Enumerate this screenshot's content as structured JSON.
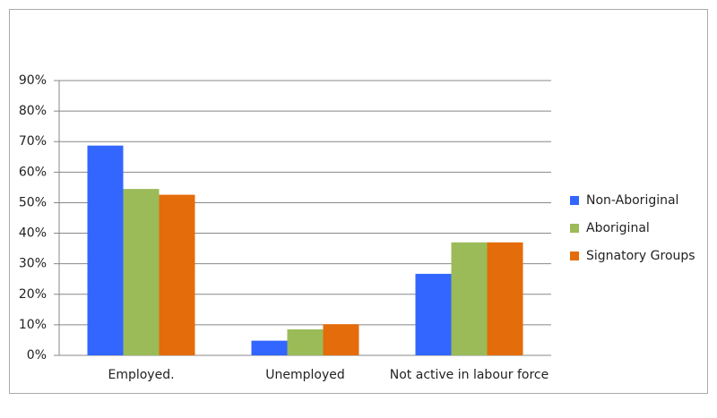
{
  "chart_data": {
    "type": "bar",
    "categories": [
      "Employed.",
      "Unemployed",
      "Not active in labour force"
    ],
    "series": [
      {
        "name": "Non-Aboriginal",
        "color": "#3366ff",
        "values": [
          68.7,
          4.8,
          26.7
        ]
      },
      {
        "name": "Aboriginal",
        "color": "#9bbb59",
        "values": [
          54.5,
          8.5,
          37
        ]
      },
      {
        "name": "Signatory Groups",
        "color": "#e46c0a",
        "values": [
          52.6,
          10.2,
          37
        ]
      }
    ],
    "ylim": [
      0,
      90
    ],
    "yticks": [
      {
        "value": 0,
        "label": "0%"
      },
      {
        "value": 10,
        "label": "10%"
      },
      {
        "value": 20,
        "label": "20%"
      },
      {
        "value": 30,
        "label": "30%"
      },
      {
        "value": 40,
        "label": "40%"
      },
      {
        "value": 50,
        "label": "50%"
      },
      {
        "value": 60,
        "label": "60%"
      },
      {
        "value": 70,
        "label": "70%"
      },
      {
        "value": 80,
        "label": "80%"
      },
      {
        "value": 90,
        "label": "90%"
      }
    ],
    "grid": true,
    "legend": "right"
  }
}
